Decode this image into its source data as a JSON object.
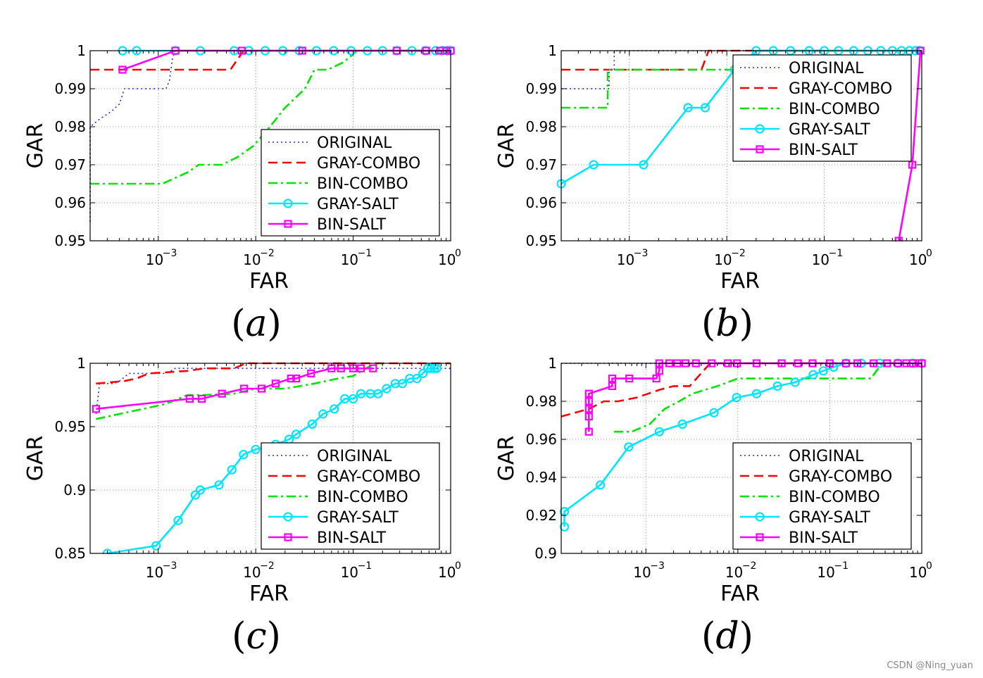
{
  "colors": {
    "ORIGINAL": "#2b2bd9",
    "GRAY-COMBO": "#ff0000",
    "BIN-COMBO": "#00e600",
    "GRAY-SALT": "#00e6ff",
    "BIN-SALT": "#ff00ff",
    "grid": "#9a9a9a",
    "axis": "#000000"
  },
  "watermark": "CSDN @Ning_yuan",
  "chart_data": [
    {
      "type": "line",
      "caption": "(a)",
      "xlabel": "FAR",
      "ylabel": "GAR",
      "xscale": "log",
      "xlim": [
        0.0002,
        1
      ],
      "ylim": [
        0.95,
        1
      ],
      "grid": true,
      "legend_position": "bottom-right",
      "xticks": [
        {
          "value": 0.001,
          "base": "10",
          "exp": "−3"
        },
        {
          "value": 0.01,
          "base": "10",
          "exp": "−2"
        },
        {
          "value": 0.1,
          "base": "10",
          "exp": "−1"
        },
        {
          "value": 1,
          "base": "10",
          "exp": "0"
        }
      ],
      "yticks": [
        {
          "value": 0.95,
          "label": "0.95"
        },
        {
          "value": 0.96,
          "label": "0.96"
        },
        {
          "value": 0.97,
          "label": "0.97"
        },
        {
          "value": 0.98,
          "label": "0.98"
        },
        {
          "value": 0.99,
          "label": "0.99"
        },
        {
          "value": 1,
          "label": "1"
        }
      ],
      "series": [
        {
          "name": "ORIGINAL",
          "style": "dotted",
          "marker": "none",
          "x": [
            0.0002,
            0.0002,
            0.00025,
            0.00033,
            0.0004,
            0.00045,
            0.0006,
            0.0008,
            0.0012,
            0.0013,
            0.0014,
            0.0015,
            0.003,
            1
          ],
          "y": [
            0.955,
            0.98,
            0.982,
            0.984,
            0.986,
            0.99,
            0.99,
            0.99,
            0.99,
            0.992,
            0.998,
            1,
            1,
            1
          ]
        },
        {
          "name": "GRAY-COMBO",
          "style": "dashed",
          "marker": "none",
          "x": [
            0.0002,
            0.0055,
            0.0075,
            1
          ],
          "y": [
            0.995,
            0.995,
            1,
            1
          ]
        },
        {
          "name": "BIN-COMBO",
          "style": "dashdot",
          "marker": "none",
          "x": [
            0.0002,
            0.0011,
            0.002,
            0.0026,
            0.0045,
            0.0065,
            0.0095,
            0.014,
            0.02,
            0.032,
            0.04,
            0.055,
            0.08,
            0.11,
            0.2,
            1
          ],
          "y": [
            0.965,
            0.965,
            0.968,
            0.97,
            0.97,
            0.972,
            0.975,
            0.98,
            0.985,
            0.99,
            0.995,
            0.995,
            0.997,
            1,
            1,
            1
          ]
        },
        {
          "name": "GRAY-SALT",
          "style": "solid",
          "marker": "circle",
          "x": [
            0.00043,
            0.0006,
            0.0015,
            0.0027,
            0.006,
            0.0085,
            0.0125,
            0.019,
            0.028,
            0.042,
            0.063,
            0.095,
            0.14,
            0.2,
            0.28,
            0.4,
            0.55,
            0.7,
            0.82,
            0.92,
            1
          ],
          "y": [
            1,
            1,
            1,
            1,
            1,
            1,
            1,
            1,
            1,
            1,
            1,
            1,
            1,
            1,
            1,
            1,
            1,
            1,
            1,
            1,
            1
          ]
        },
        {
          "name": "BIN-SALT",
          "style": "solid",
          "marker": "square",
          "x": [
            0.00043,
            0.0015,
            0.0072,
            0.03,
            0.28,
            0.56,
            0.78,
            0.9,
            1
          ],
          "y": [
            0.995,
            1,
            1,
            1,
            1,
            1,
            1,
            1,
            1
          ]
        }
      ]
    },
    {
      "type": "line",
      "caption": "(b)",
      "xlabel": "FAR",
      "ylabel": "GAR",
      "xscale": "log",
      "xlim": [
        0.0002,
        1
      ],
      "ylim": [
        0.95,
        1
      ],
      "grid": true,
      "legend_position": "top-right",
      "xticks": [
        {
          "value": 0.001,
          "base": "10",
          "exp": "−3"
        },
        {
          "value": 0.01,
          "base": "10",
          "exp": "−2"
        },
        {
          "value": 0.1,
          "base": "10",
          "exp": "−1"
        },
        {
          "value": 1,
          "base": "10",
          "exp": "0"
        }
      ],
      "yticks": [
        {
          "value": 0.95,
          "label": "0.95"
        },
        {
          "value": 0.96,
          "label": "0.96"
        },
        {
          "value": 0.97,
          "label": "0.97"
        },
        {
          "value": 0.98,
          "label": "0.98"
        },
        {
          "value": 0.99,
          "label": "0.99"
        },
        {
          "value": 1,
          "label": "1"
        }
      ],
      "series": [
        {
          "name": "ORIGINAL",
          "style": "dotted",
          "marker": "none",
          "x": [
            0.0002,
            0.00062,
            0.00062,
            0.0007,
            0.0007,
            1
          ],
          "y": [
            0.99,
            0.99,
            0.995,
            0.995,
            1,
            1
          ]
        },
        {
          "name": "GRAY-COMBO",
          "style": "dashed",
          "marker": "none",
          "x": [
            0.0002,
            0.0055,
            0.0065,
            1
          ],
          "y": [
            0.995,
            0.995,
            1,
            1
          ]
        },
        {
          "name": "BIN-COMBO",
          "style": "dashdot",
          "marker": "none",
          "x": [
            0.0002,
            0.0006,
            0.0006,
            0.012,
            0.02,
            1
          ],
          "y": [
            0.985,
            0.985,
            0.995,
            0.995,
            1,
            1
          ]
        },
        {
          "name": "GRAY-SALT",
          "style": "solid",
          "marker": "circle",
          "x": [
            0.0002,
            0.00043,
            0.0014,
            0.004,
            0.006,
            0.012,
            0.02,
            0.03,
            0.045,
            0.07,
            0.1,
            0.14,
            0.2,
            0.28,
            0.38,
            0.5,
            0.62,
            0.75,
            0.86,
            0.95
          ],
          "y": [
            0.965,
            0.97,
            0.97,
            0.985,
            0.985,
            0.995,
            1,
            1,
            1,
            1,
            1,
            1,
            1,
            1,
            1,
            1,
            1,
            1,
            1,
            1
          ]
        },
        {
          "name": "BIN-SALT",
          "style": "solid",
          "marker": "square",
          "x": [
            0.58,
            0.8,
            0.97
          ],
          "y": [
            0.95,
            0.97,
            1
          ]
        }
      ]
    },
    {
      "type": "line",
      "caption": "(c)",
      "xlabel": "FAR",
      "ylabel": "GAR",
      "xscale": "log",
      "xlim": [
        0.0002,
        1
      ],
      "ylim": [
        0.85,
        1
      ],
      "grid": true,
      "legend_position": "bottom-right",
      "xticks": [
        {
          "value": 0.001,
          "base": "10",
          "exp": "−3"
        },
        {
          "value": 0.01,
          "base": "10",
          "exp": "−2"
        },
        {
          "value": 0.1,
          "base": "10",
          "exp": "−1"
        },
        {
          "value": 1,
          "base": "10",
          "exp": "0"
        }
      ],
      "yticks": [
        {
          "value": 0.85,
          "label": "0.85"
        },
        {
          "value": 0.9,
          "label": "0.9"
        },
        {
          "value": 0.95,
          "label": "0.95"
        },
        {
          "value": 1,
          "label": "1"
        }
      ],
      "series": [
        {
          "name": "ORIGINAL",
          "style": "dotted",
          "marker": "none",
          "x": [
            0.00023,
            0.00025,
            0.00035,
            0.0004,
            0.0005,
            0.0008,
            0.0012,
            0.0015,
            1
          ],
          "y": [
            0.96,
            0.984,
            0.984,
            0.986,
            0.992,
            0.992,
            0.992,
            0.996,
            0.996
          ]
        },
        {
          "name": "GRAY-COMBO",
          "style": "dashed",
          "marker": "none",
          "x": [
            0.00023,
            0.00045,
            0.0006,
            0.0008,
            0.002,
            0.003,
            0.006,
            0.008,
            1
          ],
          "y": [
            0.984,
            0.986,
            0.988,
            0.992,
            0.994,
            0.996,
            0.996,
            1,
            1
          ]
        },
        {
          "name": "BIN-COMBO",
          "style": "dashdot",
          "marker": "none",
          "x": [
            0.00023,
            0.0004,
            0.0007,
            0.0012,
            0.002,
            0.003,
            0.006,
            0.01,
            0.02,
            0.04,
            0.07,
            0.1,
            0.15,
            0.2
          ],
          "y": [
            0.956,
            0.96,
            0.964,
            0.968,
            0.975,
            0.975,
            0.976,
            0.98,
            0.98,
            0.984,
            0.988,
            0.99,
            0.998,
            1
          ]
        },
        {
          "name": "GRAY-SALT",
          "style": "solid",
          "marker": "circle",
          "x": [
            0.0003,
            0.00095,
            0.0016,
            0.0024,
            0.0027,
            0.0042,
            0.0057,
            0.0075,
            0.01,
            0.016,
            0.022,
            0.026,
            0.038,
            0.049,
            0.064,
            0.082,
            0.1,
            0.12,
            0.15,
            0.18,
            0.22,
            0.27,
            0.32,
            0.38,
            0.45,
            0.52,
            0.58,
            0.63,
            0.68,
            0.72
          ],
          "y": [
            0.85,
            0.856,
            0.876,
            0.896,
            0.9,
            0.904,
            0.916,
            0.928,
            0.932,
            0.936,
            0.94,
            0.944,
            0.952,
            0.96,
            0.964,
            0.972,
            0.972,
            0.976,
            0.976,
            0.976,
            0.98,
            0.984,
            0.984,
            0.988,
            0.988,
            0.992,
            0.996,
            0.996,
            0.996,
            0.996
          ]
        },
        {
          "name": "BIN-SALT",
          "style": "solid",
          "marker": "square",
          "x": [
            0.00023,
            0.0021,
            0.0028,
            0.0045,
            0.0076,
            0.0115,
            0.016,
            0.023,
            0.026,
            0.037,
            0.06,
            0.075,
            0.1,
            0.12,
            0.16
          ],
          "y": [
            0.964,
            0.972,
            0.972,
            0.976,
            0.98,
            0.98,
            0.984,
            0.988,
            0.988,
            0.992,
            0.996,
            0.996,
            0.996,
            0.996,
            0.996
          ]
        }
      ]
    },
    {
      "type": "line",
      "caption": "(d)",
      "xlabel": "FAR",
      "ylabel": "GAR",
      "xscale": "log",
      "xlim": [
        0.00012,
        1
      ],
      "ylim": [
        0.9,
        1
      ],
      "grid": true,
      "legend_position": "bottom-right",
      "xticks": [
        {
          "value": 0.001,
          "base": "10",
          "exp": "−3"
        },
        {
          "value": 0.01,
          "base": "10",
          "exp": "−2"
        },
        {
          "value": 0.1,
          "base": "10",
          "exp": "−1"
        },
        {
          "value": 1,
          "base": "10",
          "exp": "0"
        }
      ],
      "yticks": [
        {
          "value": 0.9,
          "label": "0.9"
        },
        {
          "value": 0.92,
          "label": "0.92"
        },
        {
          "value": 0.94,
          "label": "0.94"
        },
        {
          "value": 0.96,
          "label": "0.96"
        },
        {
          "value": 0.98,
          "label": "0.98"
        },
        {
          "value": 1,
          "label": "1"
        }
      ],
      "series": [
        {
          "name": "ORIGINAL",
          "style": "dotted",
          "marker": "none",
          "x": [
            0.00012,
            1
          ],
          "y": [
            1,
            1
          ]
        },
        {
          "name": "GRAY-COMBO",
          "style": "dashed",
          "marker": "none",
          "x": [
            0.00012,
            0.00024,
            0.00035,
            0.0005,
            0.0008,
            0.0014,
            0.002,
            0.003,
            0.005,
            1
          ],
          "y": [
            0.972,
            0.976,
            0.98,
            0.98,
            0.982,
            0.986,
            0.988,
            0.988,
            1,
            1
          ]
        },
        {
          "name": "BIN-COMBO",
          "style": "dashdot",
          "marker": "none",
          "x": [
            0.00045,
            0.0007,
            0.0011,
            0.0016,
            0.0023,
            0.0032,
            0.006,
            0.01,
            0.02,
            0.04,
            0.09,
            0.18,
            0.28,
            0.37,
            1
          ],
          "y": [
            0.964,
            0.964,
            0.968,
            0.976,
            0.98,
            0.984,
            0.988,
            0.992,
            0.992,
            0.992,
            0.992,
            0.992,
            0.992,
            1,
            1
          ]
        },
        {
          "name": "GRAY-SALT",
          "style": "solid",
          "marker": "circle",
          "x": [
            0.00013,
            0.00013,
            0.00032,
            0.00065,
            0.0014,
            0.0025,
            0.0055,
            0.0097,
            0.016,
            0.027,
            0.042,
            0.066,
            0.085,
            0.11,
            0.15,
            0.22,
            0.35,
            0.55,
            0.8,
            1
          ],
          "y": [
            0.914,
            0.922,
            0.936,
            0.956,
            0.964,
            0.968,
            0.974,
            0.982,
            0.984,
            0.988,
            0.99,
            0.994,
            0.996,
            0.998,
            1,
            1,
            1,
            1,
            1,
            1
          ]
        },
        {
          "name": "BIN-SALT",
          "style": "solid",
          "marker": "square",
          "x": [
            0.00024,
            0.00024,
            0.00024,
            0.00024,
            0.00024,
            0.00043,
            0.00043,
            0.00066,
            0.0013,
            0.0014,
            0.0014,
            0.0018,
            0.0022,
            0.0027,
            0.0035,
            0.0052,
            0.0078,
            0.0098,
            0.016,
            0.03,
            0.045,
            0.065,
            0.1,
            0.15,
            0.2,
            0.3,
            0.42,
            0.55,
            0.68,
            0.8,
            0.92,
            1
          ],
          "y": [
            0.964,
            0.972,
            0.976,
            0.98,
            0.984,
            0.988,
            0.992,
            0.992,
            0.992,
            0.996,
            1,
            1,
            1,
            1,
            1,
            1,
            1,
            1,
            1,
            1,
            1,
            1,
            1,
            1,
            1,
            1,
            1,
            1,
            1,
            1,
            1,
            1
          ]
        }
      ]
    }
  ]
}
